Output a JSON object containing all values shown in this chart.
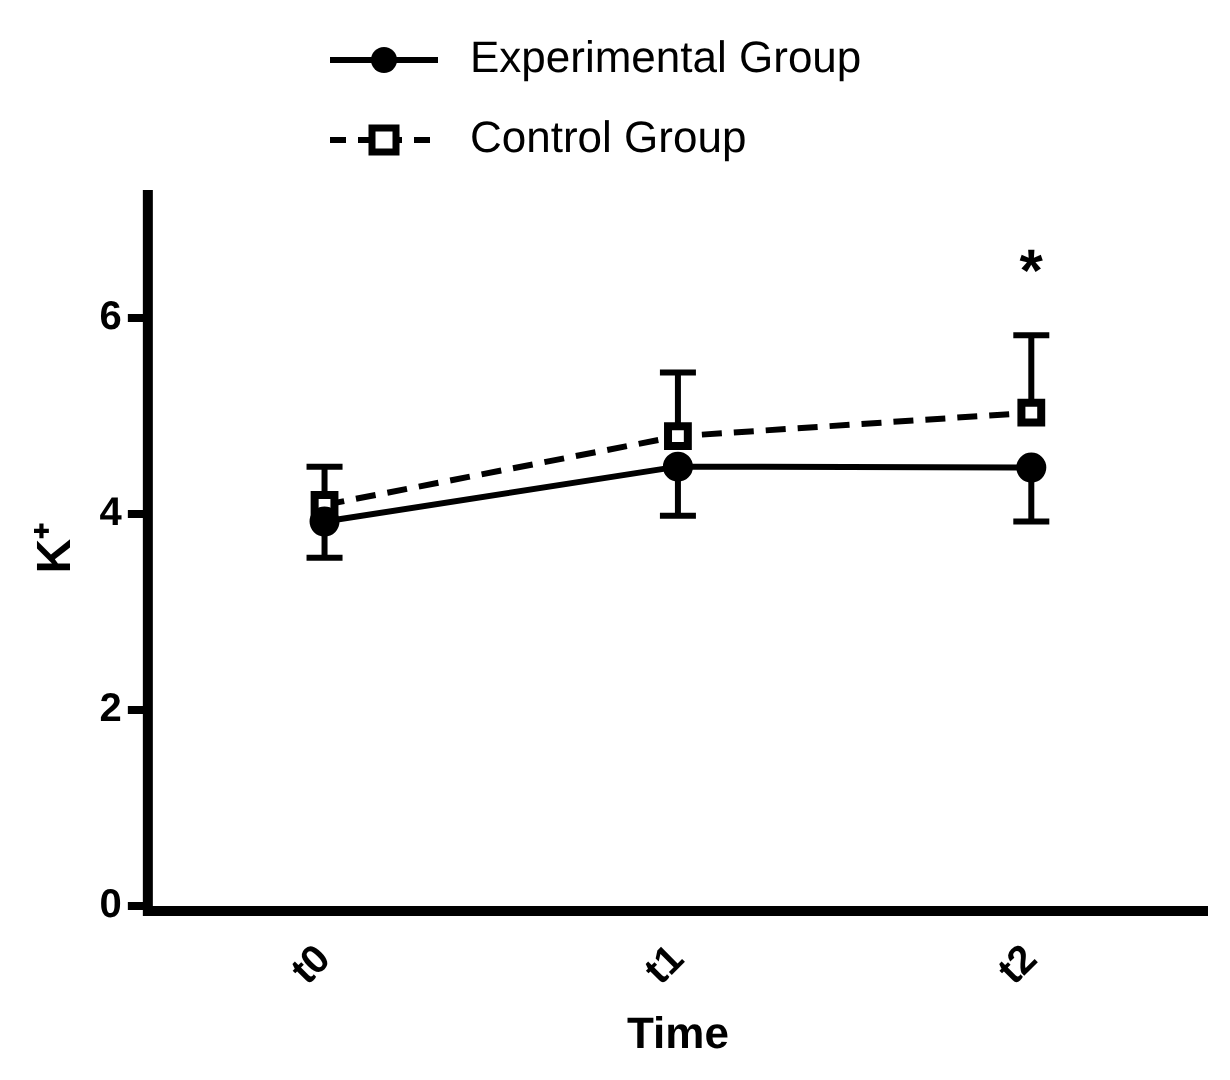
{
  "chart_data": {
    "type": "line",
    "xlabel": "Time",
    "ylabel": "K⁺",
    "categories": [
      "t0",
      "t1",
      "t2"
    ],
    "series": [
      {
        "name": "Experimental Group",
        "color": "#000000",
        "marker": "circle",
        "line_style": "solid",
        "values": [
          3.92,
          4.48,
          4.47
        ],
        "errors": [
          [
            3.55,
            3.92
          ],
          [
            3.98,
            4.48
          ],
          [
            3.92,
            4.47
          ]
        ]
      },
      {
        "name": "Control Group",
        "color": "#000000",
        "marker": "square",
        "line_style": "dashed",
        "values": [
          4.09,
          4.79,
          5.03
        ],
        "errors": [
          [
            4.09,
            4.48
          ],
          [
            4.79,
            5.44
          ],
          [
            5.03,
            5.82
          ]
        ]
      }
    ],
    "ylim": [
      0,
      7.3
    ],
    "yticks": [
      0,
      2,
      4,
      6
    ],
    "grid": false,
    "legend": "top",
    "annotations": [
      "*"
    ]
  }
}
